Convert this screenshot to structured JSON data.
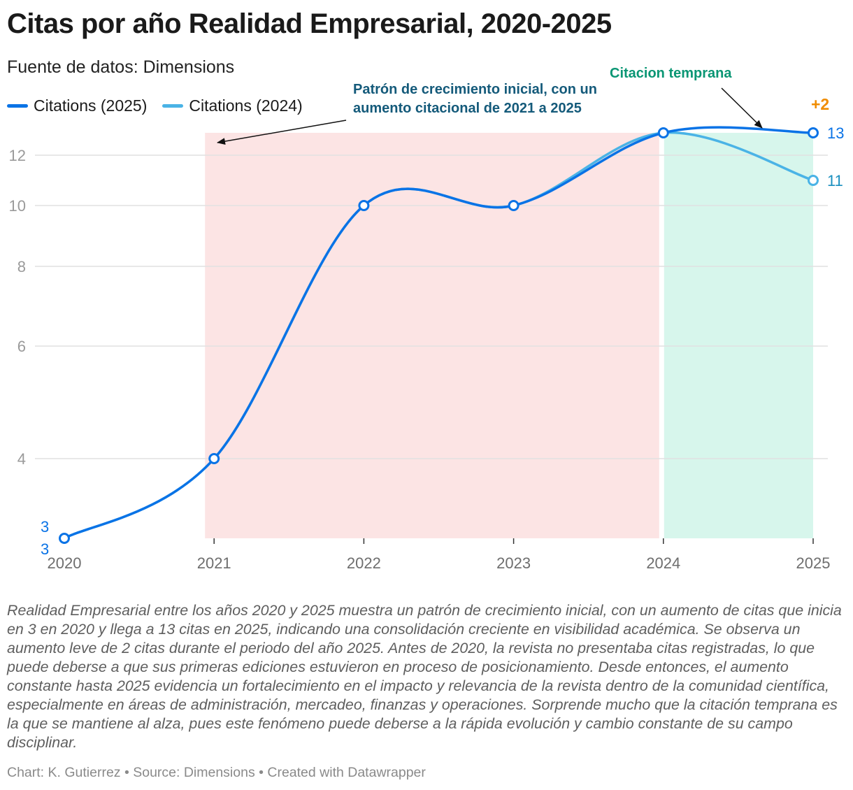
{
  "header": {
    "title": "Citas por año Realidad Empresarial, 2020-2025",
    "subtitle": "Fuente de datos: Dimensions"
  },
  "legend": [
    {
      "label": "Citations (2025)",
      "color": "#0a73e6"
    },
    {
      "label": "Citations (2024)",
      "color": "#4ab3e6"
    }
  ],
  "chart_data": {
    "type": "line",
    "title": "Citas por año Realidad Empresarial, 2020-2025",
    "xlabel": "",
    "ylabel": "",
    "categories": [
      "2020",
      "2021",
      "2022",
      "2023",
      "2024",
      "2025"
    ],
    "series": [
      {
        "name": "Citations (2025)",
        "color": "#0a73e6",
        "values": [
          3,
          4,
          10,
          10,
          13,
          13
        ]
      },
      {
        "name": "Citations (2024)",
        "color": "#4ab3e6",
        "values": [
          3,
          4,
          10,
          10,
          13,
          11
        ]
      }
    ],
    "yticks": [
      "4",
      "6",
      "8",
      "10",
      "12"
    ],
    "ylim": [
      3,
      13
    ],
    "grid": true,
    "highlight_ranges": [
      {
        "from": "2021",
        "to": "2024",
        "color": "#fce4e4"
      },
      {
        "from": "2024",
        "to": "2025",
        "color": "#d7f6ec"
      }
    ],
    "point_labels": [
      {
        "text": "3",
        "color": "#0a73e6"
      },
      {
        "text": "3",
        "color": "#0a73e6"
      },
      {
        "text": "13",
        "color": "#0a73e6"
      },
      {
        "text": "11",
        "color": "#1a8fbf"
      }
    ],
    "annotations": {
      "growth_pattern": {
        "lines": [
          "Patrón de crecimiento inicial, con un",
          "aumento citacional de 2021 a 2025"
        ],
        "color": "#145a7a"
      },
      "early_citation": {
        "text": "Citacion temprana",
        "color": "#0a9674"
      },
      "change": {
        "text": "+2",
        "color": "#f08c00"
      }
    }
  },
  "caption": "Realidad Empresarial entre los años 2020 y 2025 muestra un patrón de crecimiento inicial, con un aumento de citas que inicia en 3 en 2020 y llega a 13 citas en 2025, indicando una consolidación creciente en visibilidad académica. Se observa un aumento leve de 2 citas durante el periodo del año 2025. Antes de 2020, la revista no presentaba citas registradas, lo que puede deberse a que sus primeras ediciones estuvieron en proceso de posicionamiento. Desde entonces, el aumento constante hasta 2025 evidencia un fortalecimiento en el impacto y relevancia de la revista dentro de la comunidad científica, especialmente en áreas de administración, mercadeo, finanzas y operaciones. Sorprende mucho que la citación temprana es la que se mantiene al alza, pues este fenómeno puede deberse a la rápida evolución y cambio constante de su campo disciplinar.",
  "footer": "Chart: K. Gutierrez • Source: Dimensions • Created with Datawrapper"
}
